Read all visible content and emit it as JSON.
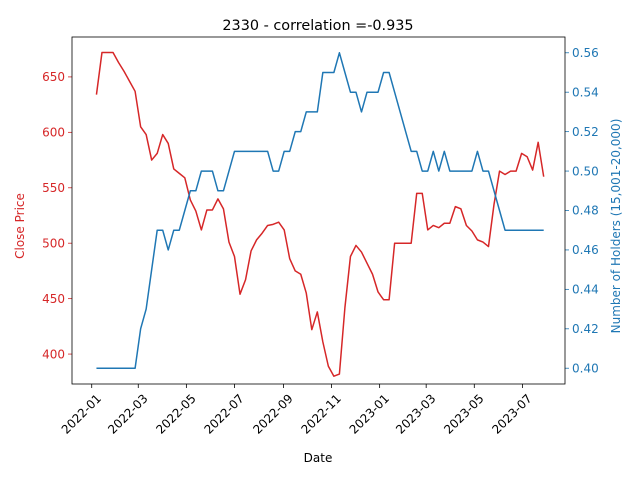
{
  "chart_data": {
    "type": "line",
    "title": "2330 - correlation =-0.935",
    "xlabel": "Date",
    "x_ticks": [
      "2022-01",
      "2022-03",
      "2022-05",
      "2022-07",
      "2022-09",
      "2022-11",
      "2023-01",
      "2023-03",
      "2023-05",
      "2023-07"
    ],
    "xlim": [
      "2021-12-07",
      "2023-08-24"
    ],
    "y_left": {
      "label": "Close Price",
      "color": "#d62728",
      "ylim": [
        373,
        686
      ],
      "ticks": [
        400,
        450,
        500,
        550,
        600,
        650
      ]
    },
    "y_right": {
      "label": "Number of Holders (15,001-20,000)",
      "color": "#1f77b4",
      "ylim": [
        0.392,
        0.568
      ],
      "ticks": [
        "0.40",
        "0.42",
        "0.44",
        "0.46",
        "0.48",
        "0.50",
        "0.52",
        "0.54",
        "0.56"
      ]
    },
    "series": [
      {
        "axis": "left",
        "color": "#d62728",
        "points": [
          [
            "2022-01-07",
            634
          ],
          [
            "2022-01-14",
            672
          ],
          [
            "2022-01-21",
            672
          ],
          [
            "2022-01-28",
            672
          ],
          [
            "2022-02-04",
            663
          ],
          [
            "2022-02-11",
            655
          ],
          [
            "2022-02-18",
            646
          ],
          [
            "2022-02-25",
            637
          ],
          [
            "2022-03-04",
            605
          ],
          [
            "2022-03-11",
            598
          ],
          [
            "2022-03-18",
            575
          ],
          [
            "2022-03-25",
            581
          ],
          [
            "2022-04-01",
            598
          ],
          [
            "2022-04-08",
            590
          ],
          [
            "2022-04-15",
            567
          ],
          [
            "2022-04-22",
            563
          ],
          [
            "2022-04-29",
            559
          ],
          [
            "2022-05-06",
            539
          ],
          [
            "2022-05-13",
            529
          ],
          [
            "2022-05-20",
            512
          ],
          [
            "2022-05-27",
            530
          ],
          [
            "2022-06-03",
            530
          ],
          [
            "2022-06-10",
            540
          ],
          [
            "2022-06-17",
            531
          ],
          [
            "2022-06-24",
            501
          ],
          [
            "2022-07-01",
            488
          ],
          [
            "2022-07-08",
            454
          ],
          [
            "2022-07-15",
            467
          ],
          [
            "2022-07-22",
            493
          ],
          [
            "2022-07-29",
            503
          ],
          [
            "2022-08-05",
            509
          ],
          [
            "2022-08-12",
            516
          ],
          [
            "2022-08-19",
            517
          ],
          [
            "2022-08-26",
            519
          ],
          [
            "2022-09-02",
            512
          ],
          [
            "2022-09-09",
            486
          ],
          [
            "2022-09-16",
            475
          ],
          [
            "2022-09-23",
            472
          ],
          [
            "2022-09-30",
            455
          ],
          [
            "2022-10-07",
            422
          ],
          [
            "2022-10-14",
            438
          ],
          [
            "2022-10-21",
            411
          ],
          [
            "2022-10-28",
            389
          ],
          [
            "2022-11-04",
            380
          ],
          [
            "2022-11-11",
            382
          ],
          [
            "2022-11-18",
            442
          ],
          [
            "2022-11-25",
            488
          ],
          [
            "2022-12-02",
            498
          ],
          [
            "2022-12-09",
            492
          ],
          [
            "2022-12-16",
            482
          ],
          [
            "2022-12-23",
            472
          ],
          [
            "2022-12-30",
            456
          ],
          [
            "2023-01-06",
            449
          ],
          [
            "2023-01-13",
            449
          ],
          [
            "2023-01-20",
            500
          ],
          [
            "2023-01-27",
            500
          ],
          [
            "2023-02-03",
            500
          ],
          [
            "2023-02-10",
            500
          ],
          [
            "2023-02-17",
            545
          ],
          [
            "2023-02-24",
            545
          ],
          [
            "2023-03-03",
            512
          ],
          [
            "2023-03-10",
            516
          ],
          [
            "2023-03-17",
            514
          ],
          [
            "2023-03-24",
            518
          ],
          [
            "2023-03-31",
            518
          ],
          [
            "2023-04-07",
            533
          ],
          [
            "2023-04-14",
            531
          ],
          [
            "2023-04-21",
            516
          ],
          [
            "2023-04-28",
            511
          ],
          [
            "2023-05-05",
            503
          ],
          [
            "2023-05-12",
            501
          ],
          [
            "2023-05-19",
            497
          ],
          [
            "2023-05-26",
            535
          ],
          [
            "2023-06-02",
            565
          ],
          [
            "2023-06-09",
            562
          ],
          [
            "2023-06-16",
            565
          ],
          [
            "2023-06-23",
            565
          ],
          [
            "2023-06-30",
            581
          ],
          [
            "2023-07-07",
            578
          ],
          [
            "2023-07-14",
            566
          ],
          [
            "2023-07-21",
            591
          ],
          [
            "2023-07-28",
            560
          ]
        ]
      },
      {
        "axis": "right",
        "color": "#1f77b4",
        "points": [
          [
            "2022-01-07",
            0.4
          ],
          [
            "2022-01-14",
            0.4
          ],
          [
            "2022-01-21",
            0.4
          ],
          [
            "2022-01-28",
            0.4
          ],
          [
            "2022-02-04",
            0.4
          ],
          [
            "2022-02-11",
            0.4
          ],
          [
            "2022-02-18",
            0.4
          ],
          [
            "2022-02-25",
            0.4
          ],
          [
            "2022-03-04",
            0.42
          ],
          [
            "2022-03-11",
            0.43
          ],
          [
            "2022-03-18",
            0.45
          ],
          [
            "2022-03-25",
            0.47
          ],
          [
            "2022-04-01",
            0.47
          ],
          [
            "2022-04-08",
            0.46
          ],
          [
            "2022-04-15",
            0.47
          ],
          [
            "2022-04-22",
            0.47
          ],
          [
            "2022-04-29",
            0.48
          ],
          [
            "2022-05-06",
            0.49
          ],
          [
            "2022-05-13",
            0.49
          ],
          [
            "2022-05-20",
            0.5
          ],
          [
            "2022-05-27",
            0.5
          ],
          [
            "2022-06-03",
            0.5
          ],
          [
            "2022-06-10",
            0.49
          ],
          [
            "2022-06-17",
            0.49
          ],
          [
            "2022-06-24",
            0.5
          ],
          [
            "2022-07-01",
            0.51
          ],
          [
            "2022-07-08",
            0.51
          ],
          [
            "2022-07-15",
            0.51
          ],
          [
            "2022-07-22",
            0.51
          ],
          [
            "2022-07-29",
            0.51
          ],
          [
            "2022-08-05",
            0.51
          ],
          [
            "2022-08-12",
            0.51
          ],
          [
            "2022-08-19",
            0.5
          ],
          [
            "2022-08-26",
            0.5
          ],
          [
            "2022-09-02",
            0.51
          ],
          [
            "2022-09-09",
            0.51
          ],
          [
            "2022-09-16",
            0.52
          ],
          [
            "2022-09-23",
            0.52
          ],
          [
            "2022-09-30",
            0.53
          ],
          [
            "2022-10-07",
            0.53
          ],
          [
            "2022-10-14",
            0.53
          ],
          [
            "2022-10-21",
            0.55
          ],
          [
            "2022-10-28",
            0.55
          ],
          [
            "2022-11-04",
            0.55
          ],
          [
            "2022-11-11",
            0.56
          ],
          [
            "2022-11-18",
            0.55
          ],
          [
            "2022-11-25",
            0.54
          ],
          [
            "2022-12-02",
            0.54
          ],
          [
            "2022-12-09",
            0.53
          ],
          [
            "2022-12-16",
            0.54
          ],
          [
            "2022-12-23",
            0.54
          ],
          [
            "2022-12-30",
            0.54
          ],
          [
            "2023-01-06",
            0.55
          ],
          [
            "2023-01-13",
            0.55
          ],
          [
            "2023-01-20",
            0.54
          ],
          [
            "2023-01-27",
            0.53
          ],
          [
            "2023-02-03",
            0.52
          ],
          [
            "2023-02-10",
            0.51
          ],
          [
            "2023-02-17",
            0.51
          ],
          [
            "2023-02-24",
            0.5
          ],
          [
            "2023-03-03",
            0.5
          ],
          [
            "2023-03-10",
            0.51
          ],
          [
            "2023-03-17",
            0.5
          ],
          [
            "2023-03-24",
            0.51
          ],
          [
            "2023-03-31",
            0.5
          ],
          [
            "2023-04-07",
            0.5
          ],
          [
            "2023-04-14",
            0.5
          ],
          [
            "2023-04-21",
            0.5
          ],
          [
            "2023-04-28",
            0.5
          ],
          [
            "2023-05-05",
            0.51
          ],
          [
            "2023-05-12",
            0.5
          ],
          [
            "2023-05-19",
            0.5
          ],
          [
            "2023-05-26",
            0.49
          ],
          [
            "2023-06-02",
            0.48
          ],
          [
            "2023-06-09",
            0.47
          ],
          [
            "2023-06-16",
            0.47
          ],
          [
            "2023-06-23",
            0.47
          ],
          [
            "2023-06-30",
            0.47
          ],
          [
            "2023-07-07",
            0.47
          ],
          [
            "2023-07-14",
            0.47
          ],
          [
            "2023-07-21",
            0.47
          ],
          [
            "2023-07-28",
            0.47
          ]
        ]
      }
    ],
    "grid": false,
    "legend": "none"
  }
}
